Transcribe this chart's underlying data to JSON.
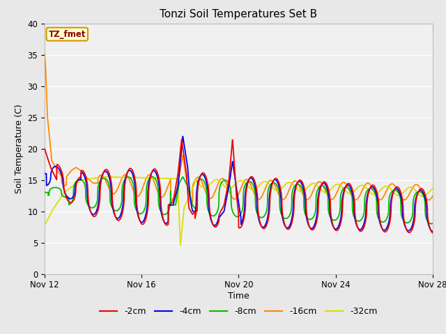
{
  "title": "Tonzi Soil Temperatures Set B",
  "xlabel": "Time",
  "ylabel": "Soil Temperature (C)",
  "ylim": [
    0,
    40
  ],
  "yticks": [
    0,
    5,
    10,
    15,
    20,
    25,
    30,
    35,
    40
  ],
  "xtick_labels": [
    "Nov 12",
    "Nov 16",
    "Nov 20",
    "Nov 24",
    "Nov 28"
  ],
  "xtick_positions": [
    0,
    4,
    8,
    12,
    16
  ],
  "fig_bg_color": "#e8e8e8",
  "plot_bg_color": "#f0f0f0",
  "colors": {
    "r2": "#ee0000",
    "r4": "#0000ee",
    "r8": "#00bb00",
    "r16": "#ff8800",
    "r32": "#dddd00"
  },
  "legend_bg": "#ffffcc",
  "legend_border": "#cc9900",
  "legend_text_color": "#880000"
}
